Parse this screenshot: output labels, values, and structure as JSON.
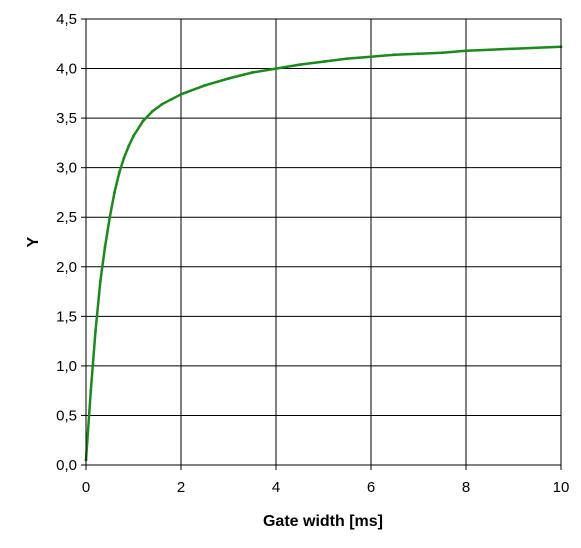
{
  "chart_data": {
    "type": "line",
    "title": "",
    "xlabel": "Gate width [ms]",
    "ylabel": "Y",
    "xlim": [
      0,
      10
    ],
    "ylim": [
      0,
      4.5
    ],
    "x_ticks": [
      0,
      2,
      4,
      6,
      8,
      10
    ],
    "x_tick_labels": [
      "0",
      "2",
      "4",
      "6",
      "8",
      "10"
    ],
    "y_ticks": [
      0,
      0.5,
      1,
      1.5,
      2,
      2.5,
      3,
      3.5,
      4,
      4.5
    ],
    "y_tick_labels": [
      "0,0",
      "0,5",
      "1,0",
      "1,5",
      "2,0",
      "2,5",
      "3,0",
      "3,5",
      "4,0",
      "4,5"
    ],
    "grid": true,
    "legend": "none",
    "series": [
      {
        "color": "#1a8a1a",
        "x": [
          0,
          0.1,
          0.2,
          0.3,
          0.4,
          0.5,
          0.6,
          0.7,
          0.8,
          0.9,
          1.0,
          1.2,
          1.4,
          1.6,
          1.8,
          2.0,
          2.5,
          3.0,
          3.5,
          4.0,
          4.5,
          5.0,
          5.5,
          6.0,
          6.5,
          7.0,
          7.5,
          8.0,
          8.5,
          9.0,
          9.5,
          10.0
        ],
        "y": [
          0.05,
          0.75,
          1.35,
          1.85,
          2.2,
          2.5,
          2.75,
          2.95,
          3.1,
          3.22,
          3.32,
          3.47,
          3.57,
          3.64,
          3.69,
          3.74,
          3.83,
          3.9,
          3.96,
          4.0,
          4.04,
          4.07,
          4.1,
          4.12,
          4.14,
          4.15,
          4.16,
          4.18,
          4.19,
          4.2,
          4.21,
          4.22
        ]
      }
    ]
  }
}
